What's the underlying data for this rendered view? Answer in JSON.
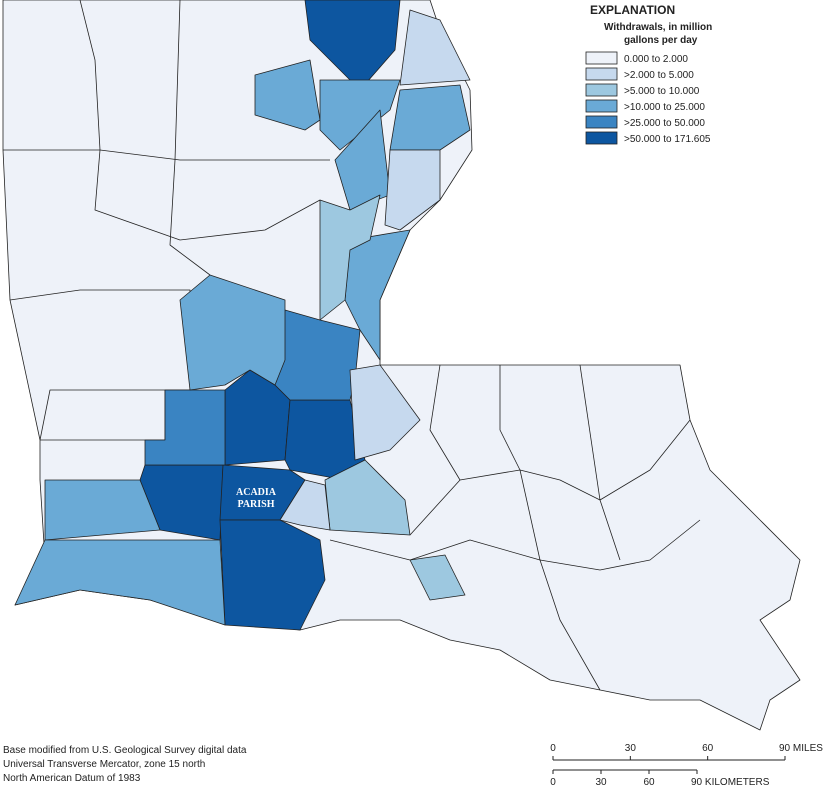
{
  "legend": {
    "title": "EXPLANATION",
    "subtitle": [
      "Withdrawals, in million",
      "gallons per day"
    ],
    "classes": [
      {
        "label": "0.000 to 2.000",
        "color": "#eef2f9"
      },
      {
        "label": ">2.000 to 5.000",
        "color": "#c6d9ee"
      },
      {
        "label": ">5.000 to 10.000",
        "color": "#9dc8e0"
      },
      {
        "label": ">10.000 to 25.000",
        "color": "#6aaad6"
      },
      {
        "label": ">25.000 to 50.000",
        "color": "#3a84c2"
      },
      {
        "label": ">50.000 to 171.605",
        "color": "#0d56a0"
      }
    ]
  },
  "map": {
    "label": [
      "ACADIA",
      "PARISH"
    ]
  },
  "base_note": [
    "Base modified from U.S. Geological Survey digital data",
    "Universal Transverse Mercator, zone 15 north",
    "North American Datum of 1983"
  ],
  "scale": {
    "miles": [
      0,
      30,
      60,
      {
        "value": 90,
        "label": "90 MILES"
      }
    ],
    "kilometers": [
      0,
      30,
      60,
      {
        "value": 90,
        "label": "90 KILOMETERS"
      }
    ]
  }
}
